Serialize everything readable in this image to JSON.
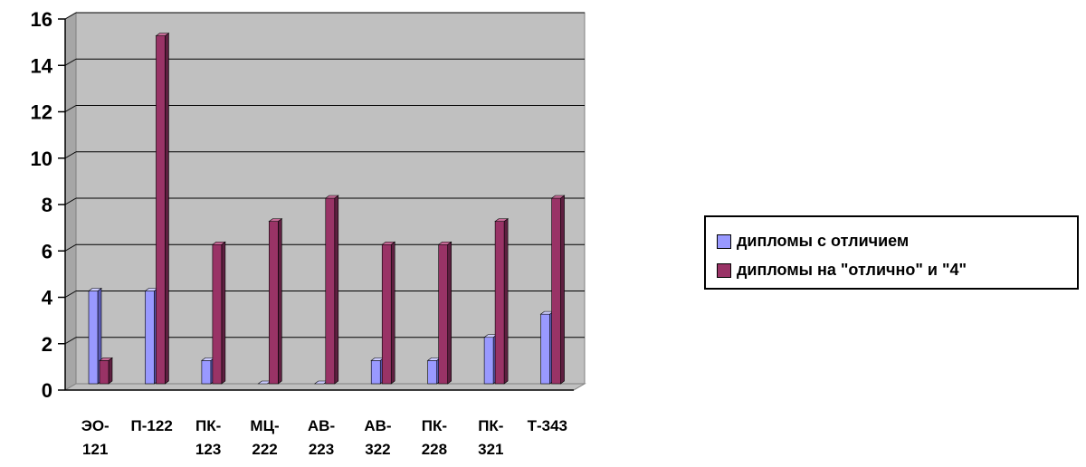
{
  "chart_data": {
    "type": "bar",
    "categories": [
      [
        "ЭО-",
        "121"
      ],
      [
        "П-122"
      ],
      [
        "ПК-",
        "123"
      ],
      [
        "МЦ-",
        "222"
      ],
      [
        "АВ-",
        "223"
      ],
      [
        "АВ-",
        "322"
      ],
      [
        "ПК-",
        "228"
      ],
      [
        "ПК-",
        "321"
      ],
      [
        "Т-343"
      ]
    ],
    "series": [
      {
        "name": "дипломы с отличием",
        "values": [
          4,
          4,
          1,
          0,
          0,
          1,
          1,
          2,
          3
        ],
        "color": "#9999ff",
        "side_color": "#5c5cb8",
        "top_color": "#ccccff"
      },
      {
        "name": "дипломы на \"отлично\" и \"4\"",
        "values": [
          1,
          15,
          6,
          7,
          8,
          6,
          6,
          7,
          8
        ],
        "color": "#993366",
        "side_color": "#5e1f40",
        "top_color": "#c76a97"
      }
    ],
    "yticks": [
      0,
      2,
      4,
      6,
      8,
      10,
      12,
      14,
      16
    ],
    "ylim": [
      0,
      16
    ],
    "grid": true,
    "legend": "right",
    "title": "",
    "xlabel": "",
    "ylabel": "",
    "wall_color": "#c0c0c0",
    "floor_color": "#c0c0c0"
  }
}
